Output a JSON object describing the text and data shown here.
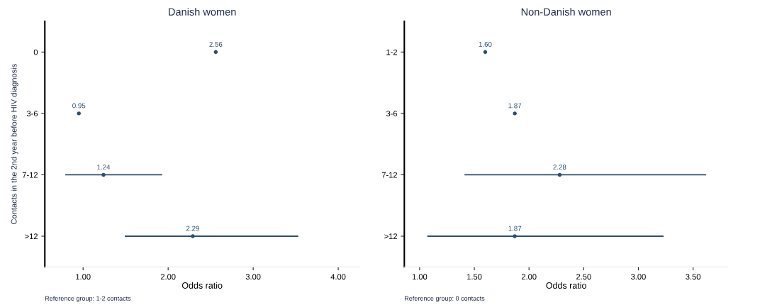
{
  "chart_data": [
    {
      "type": "scatter",
      "orientation": "horizontal",
      "title": "Danish women",
      "xlabel": "Odds ratio",
      "ylabel": "Contacts in the 2nd year before HIV diagnosis",
      "categories": [
        "0",
        "3-6",
        "7-12",
        ">12"
      ],
      "values": [
        2.56,
        0.95,
        1.24,
        2.29
      ],
      "errors": [
        null,
        null,
        [
          0.79,
          1.93
        ],
        [
          1.49,
          3.53
        ]
      ],
      "value_labels": [
        "2.56",
        "0.95",
        "1.24",
        "2.29"
      ],
      "color": "#2d4e6e",
      "marker": "circle",
      "xlim": [
        0.55,
        4.25
      ],
      "xticks": [
        {
          "value": 1,
          "label": "1.00"
        },
        {
          "value": 2,
          "label": "2.00"
        },
        {
          "value": 3,
          "label": "3.00"
        },
        {
          "value": 4,
          "label": "4.00"
        }
      ],
      "annotations": [
        "Reference group: 1-2 contacts"
      ]
    },
    {
      "type": "scatter",
      "orientation": "horizontal",
      "title": "Non-Danish women",
      "xlabel": "Odds ratio",
      "categories": [
        "1-2",
        "3-6",
        "7-12",
        ">12"
      ],
      "values": [
        1.6,
        1.87,
        2.28,
        1.87
      ],
      "errors": [
        null,
        null,
        [
          1.41,
          3.62
        ],
        [
          1.07,
          3.23
        ]
      ],
      "value_labels": [
        "1.60",
        "1.87",
        "2.28",
        "1.87"
      ],
      "color": "#2d4e6e",
      "marker": "circle",
      "xlim": [
        0.86,
        3.82
      ],
      "xticks": [
        {
          "value": 1,
          "label": "1.00"
        },
        {
          "value": 1.5,
          "label": "1.50"
        },
        {
          "value": 2,
          "label": "2.00"
        },
        {
          "value": 2.5,
          "label": "2.50"
        },
        {
          "value": 3,
          "label": "3.00"
        },
        {
          "value": 3.5,
          "label": "3.50"
        }
      ],
      "annotations": [
        "Reference group: 0 contacts"
      ]
    }
  ]
}
